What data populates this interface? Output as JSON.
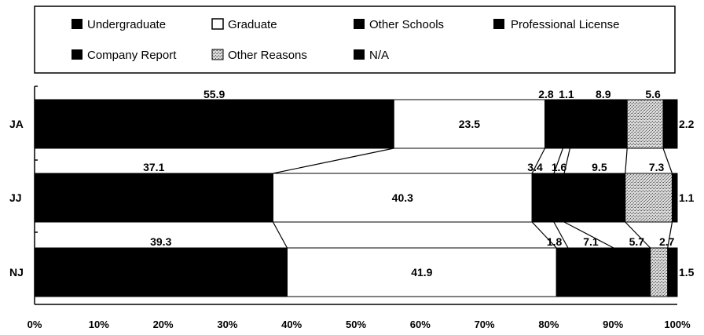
{
  "colors": {
    "undergraduate": "#000000",
    "graduate": "#ffffff",
    "other_schools": "#000000",
    "professional_license": "#000000",
    "company_report": "#000000",
    "other_reasons": "#bdbdbd",
    "na": "#000000"
  },
  "chart_data": {
    "type": "bar",
    "orientation": "horizontal",
    "stacked": true,
    "categories": [
      "JA",
      "JJ",
      "NJ"
    ],
    "series": [
      {
        "name": "Undergraduate",
        "values": [
          55.9,
          37.1,
          39.3
        ]
      },
      {
        "name": "Graduate",
        "values": [
          23.5,
          40.3,
          41.9
        ]
      },
      {
        "name": "Other Schools",
        "values": [
          2.8,
          3.4,
          1.8
        ]
      },
      {
        "name": "Professional License",
        "values": [
          1.1,
          1.6,
          7.1
        ]
      },
      {
        "name": "Company Report",
        "values": [
          8.9,
          9.5,
          5.7
        ]
      },
      {
        "name": "Other Reasons",
        "values": [
          5.6,
          7.3,
          2.7
        ]
      },
      {
        "name": "N/A",
        "values": [
          2.2,
          1.1,
          1.5
        ]
      }
    ],
    "labels": [
      [
        "55.9",
        "23.5",
        "2.8",
        "1.1",
        "8.9",
        "5.6",
        "2.2"
      ],
      [
        "37.1",
        "40.3",
        "3.4",
        "1.6",
        "9.5",
        "7.3",
        "1.1"
      ],
      [
        "39.3",
        "41.9",
        "1.8",
        "7.1",
        "5.7",
        "2.7",
        "1.5"
      ]
    ],
    "x_ticks": [
      "0%",
      "10%",
      "20%",
      "30%",
      "40%",
      "50%",
      "60%",
      "70%",
      "80%",
      "90%",
      "100%"
    ],
    "xlim": [
      0,
      100
    ],
    "legend_position": "top",
    "grid": false
  }
}
